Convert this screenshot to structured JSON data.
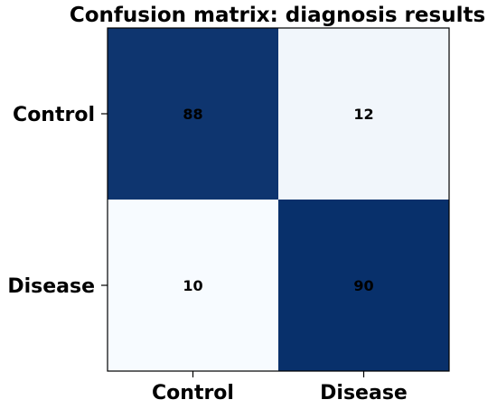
{
  "chart_data": {
    "type": "heatmap",
    "title": "Confusion matrix: diagnosis results",
    "xlabel": "",
    "ylabel": "",
    "x_categories": [
      "Control",
      "Disease"
    ],
    "y_categories": [
      "Control",
      "Disease"
    ],
    "values": [
      [
        88,
        12
      ],
      [
        10,
        90
      ]
    ],
    "value_range": [
      10,
      90
    ],
    "colormap": "Blues",
    "colors": {
      "low": "#f7fbff",
      "high": "#08306b",
      "cell_text": "#000000",
      "axis": "#000000"
    },
    "grid": false,
    "legend": "none"
  }
}
